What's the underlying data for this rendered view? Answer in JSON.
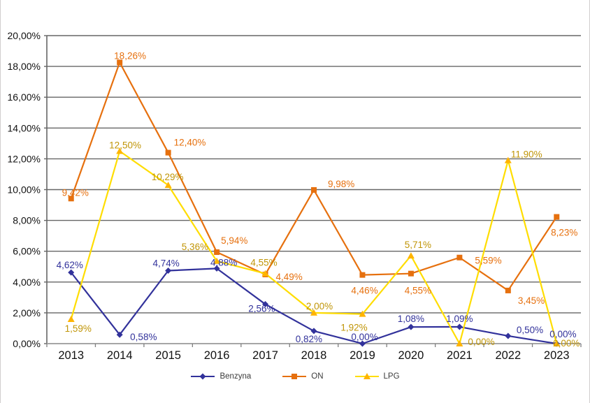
{
  "page": {
    "background_color": "#FFFFFF",
    "frame_border_color": "#D0CECE"
  },
  "chart_data": {
    "type": "line",
    "title": "",
    "xlabel": "",
    "ylabel": "",
    "categories": [
      "2013",
      "2014",
      "2015",
      "2016",
      "2017",
      "2018",
      "2019",
      "2020",
      "2021",
      "2022",
      "2023"
    ],
    "series": [
      {
        "name": "Benzyna",
        "color": "#32329B",
        "label_color": "#32329B",
        "marker": "diamond",
        "values": [
          4.62,
          0.58,
          4.74,
          4.88,
          2.56,
          0.82,
          0.0,
          1.08,
          1.09,
          0.5,
          0.0
        ],
        "labels": [
          "4,62%",
          "0,58%",
          "4,74%",
          "4,88%",
          "2,56%",
          "0,82%",
          "0,00%",
          "1,08%",
          "1,09%",
          "0,50%",
          "0,00%"
        ]
      },
      {
        "name": "ON",
        "color": "#E6700E",
        "label_color": "#E6700E",
        "marker": "square",
        "values": [
          9.42,
          18.26,
          12.4,
          5.94,
          4.49,
          9.98,
          4.46,
          4.55,
          5.59,
          3.45,
          8.23
        ],
        "labels": [
          "9,42%",
          "18,26%",
          "12,40%",
          "5,94%",
          "4,49%",
          "9,98%",
          "4,46%",
          "4,55%",
          "5,59%",
          "3,45%",
          "8,23%"
        ]
      },
      {
        "name": "LPG",
        "color": "#FFDD00",
        "marker_color": "#FFB400",
        "label_color": "#C09507",
        "marker": "triangle",
        "values": [
          1.59,
          12.5,
          10.29,
          5.36,
          4.55,
          2.0,
          1.92,
          5.71,
          0.0,
          11.9,
          0.0
        ],
        "labels": [
          "1,59%",
          "12,50%",
          "10,29%",
          "5,36%",
          "4,55%",
          "2,00%",
          "1,92%",
          "5,71%",
          "0,00%",
          "11,90%",
          "0,00%"
        ]
      }
    ],
    "ylim": [
      0,
      20
    ],
    "ytick_step": 2,
    "ytick_labels": [
      "0,00%",
      "2,00%",
      "4,00%",
      "6,00%",
      "8,00%",
      "10,00%",
      "12,00%",
      "14,00%",
      "16,00%",
      "18,00%",
      "20,00%"
    ],
    "grid": true,
    "gridline_color": "#666666",
    "y_axis_color": "#666666",
    "x_axis_color": "#A6A6A6",
    "tick_color": "#7F7F7F",
    "tick_label_color": "#111111",
    "legend_position": "bottom"
  }
}
